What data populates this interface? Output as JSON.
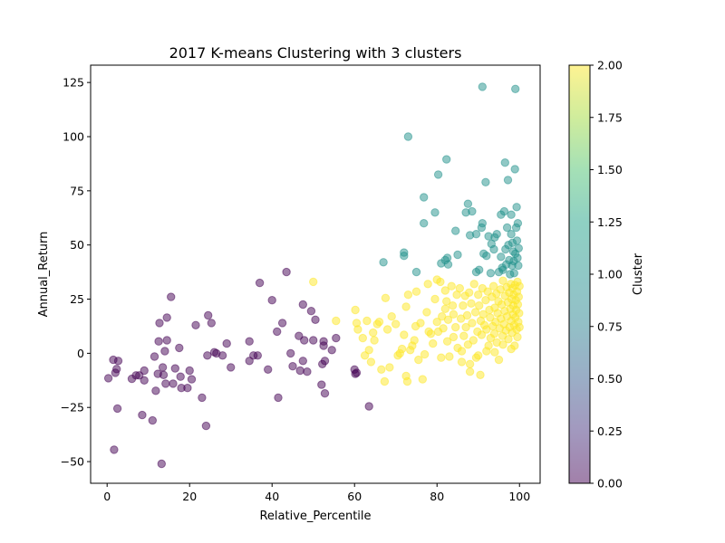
{
  "chart_data": {
    "type": "scatter",
    "title": "2017 K-means Clustering with 3 clusters",
    "xlabel": "Relative_Percentile",
    "ylabel": "Annual_Return",
    "xlim": [
      -4,
      105
    ],
    "ylim": [
      -60,
      133
    ],
    "xticks": [
      0,
      20,
      40,
      60,
      80,
      100
    ],
    "yticks": [
      -50,
      -25,
      0,
      25,
      50,
      75,
      100,
      125
    ],
    "grid": false,
    "colorbar": {
      "label": "Cluster",
      "range": [
        0,
        2
      ],
      "ticks": [
        "0.00",
        "0.25",
        "0.50",
        "0.75",
        "1.00",
        "1.25",
        "1.50",
        "1.75",
        "2.00"
      ],
      "colormap": "viridis"
    },
    "point_alpha": 0.5,
    "series": [
      {
        "cluster": 0,
        "color": "#440154",
        "points": [
          [
            0.3,
            -11.5
          ],
          [
            1.5,
            -3.0
          ],
          [
            1.7,
            -44.5
          ],
          [
            2.0,
            -9.0
          ],
          [
            2.3,
            -7.3
          ],
          [
            2.5,
            -25.5
          ],
          [
            2.7,
            -3.5
          ],
          [
            6.0,
            -11.8
          ],
          [
            7.0,
            -10.2
          ],
          [
            7.8,
            -10.2
          ],
          [
            8.5,
            -28.5
          ],
          [
            9.0,
            -8.0
          ],
          [
            9.0,
            -12.5
          ],
          [
            11.0,
            -31.0
          ],
          [
            11.5,
            -1.5
          ],
          [
            11.8,
            -17.3
          ],
          [
            12.3,
            -9.5
          ],
          [
            12.5,
            5.5
          ],
          [
            12.7,
            14.0
          ],
          [
            13.2,
            -51.0
          ],
          [
            13.5,
            -6.5
          ],
          [
            13.7,
            -10.0
          ],
          [
            14.0,
            1.0
          ],
          [
            14.2,
            -14.0
          ],
          [
            14.5,
            16.5
          ],
          [
            14.5,
            6.0
          ],
          [
            15.5,
            26.0
          ],
          [
            16.0,
            -14.0
          ],
          [
            16.5,
            -7.0
          ],
          [
            17.5,
            2.5
          ],
          [
            17.8,
            -10.8
          ],
          [
            18.0,
            -16.0
          ],
          [
            19.5,
            -16.0
          ],
          [
            20.0,
            -8.0
          ],
          [
            20.5,
            -12.0
          ],
          [
            21.5,
            13.0
          ],
          [
            23.0,
            -20.5
          ],
          [
            24.0,
            -33.5
          ],
          [
            24.3,
            -1.0
          ],
          [
            24.5,
            17.5
          ],
          [
            25.3,
            14.0
          ],
          [
            26.0,
            0.5
          ],
          [
            26.5,
            0.0
          ],
          [
            28.0,
            -1.0
          ],
          [
            29.0,
            4.5
          ],
          [
            30.0,
            -6.5
          ],
          [
            34.5,
            5.5
          ],
          [
            34.5,
            -3.5
          ],
          [
            35.5,
            -1.0
          ],
          [
            36.5,
            -1.0
          ],
          [
            37.0,
            32.5
          ],
          [
            39.0,
            -7.5
          ],
          [
            40.0,
            24.5
          ],
          [
            41.2,
            10.0
          ],
          [
            41.5,
            -20.5
          ],
          [
            42.5,
            14.0
          ],
          [
            43.5,
            37.5
          ],
          [
            44.5,
            0.0
          ],
          [
            45.0,
            -6.0
          ],
          [
            46.5,
            8.0
          ],
          [
            46.8,
            -8.0
          ],
          [
            47.5,
            -3.5
          ],
          [
            47.5,
            22.5
          ],
          [
            47.8,
            6.0
          ],
          [
            48.5,
            -8.5
          ],
          [
            49.5,
            19.5
          ],
          [
            50.0,
            6.0
          ],
          [
            50.5,
            15.5
          ],
          [
            52.0,
            -14.5
          ],
          [
            52.2,
            -5.0
          ],
          [
            52.5,
            5.5
          ],
          [
            52.5,
            3.5
          ],
          [
            52.8,
            -18.5
          ],
          [
            52.8,
            -3.5
          ],
          [
            54.5,
            1.5
          ],
          [
            55.5,
            7.0
          ],
          [
            60.0,
            -7.5
          ],
          [
            60.2,
            -9.5
          ],
          [
            60.5,
            -9.0
          ],
          [
            63.5,
            -24.5
          ]
        ]
      },
      {
        "cluster": 1,
        "color": "#21918c",
        "points": [
          [
            67.0,
            42.0
          ],
          [
            72.0,
            46.5
          ],
          [
            72.0,
            45.0
          ],
          [
            73.0,
            100.0
          ],
          [
            75.0,
            37.5
          ],
          [
            76.8,
            72.0
          ],
          [
            76.8,
            60.0
          ],
          [
            79.5,
            65.0
          ],
          [
            80.3,
            82.5
          ],
          [
            81.0,
            41.5
          ],
          [
            82.0,
            43.0
          ],
          [
            82.3,
            89.5
          ],
          [
            82.5,
            44.0
          ],
          [
            82.7,
            41.0
          ],
          [
            84.5,
            56.5
          ],
          [
            85.0,
            45.5
          ],
          [
            87.0,
            65.0
          ],
          [
            87.5,
            69.0
          ],
          [
            88.0,
            54.5
          ],
          [
            88.5,
            65.5
          ],
          [
            89.5,
            55.0
          ],
          [
            89.5,
            37.5
          ],
          [
            90.2,
            38.5
          ],
          [
            90.8,
            58.0
          ],
          [
            91.0,
            60.0
          ],
          [
            91.3,
            46.0
          ],
          [
            91.8,
            79.0
          ],
          [
            91.0,
            123.0
          ],
          [
            92.0,
            45.0
          ],
          [
            92.5,
            54.0
          ],
          [
            93.0,
            37.0
          ],
          [
            93.2,
            50.5
          ],
          [
            93.8,
            48.0
          ],
          [
            94.0,
            53.5
          ],
          [
            94.5,
            55.0
          ],
          [
            95.0,
            37.5
          ],
          [
            95.5,
            64.0
          ],
          [
            95.5,
            44.5
          ],
          [
            95.8,
            39.5
          ],
          [
            96.0,
            38.5
          ],
          [
            96.3,
            65.5
          ],
          [
            96.5,
            88.0
          ],
          [
            96.6,
            48.0
          ],
          [
            96.8,
            41.0
          ],
          [
            97.0,
            58.0
          ],
          [
            97.2,
            80.0
          ],
          [
            97.3,
            50.0
          ],
          [
            97.5,
            43.0
          ],
          [
            97.7,
            36.5
          ],
          [
            98.0,
            55.0
          ],
          [
            98.0,
            64.0
          ],
          [
            98.2,
            40.5
          ],
          [
            98.3,
            51.0
          ],
          [
            98.5,
            47.0
          ],
          [
            98.6,
            42.5
          ],
          [
            98.7,
            37.0
          ],
          [
            98.9,
            85.0
          ],
          [
            99.0,
            122.0
          ],
          [
            99.0,
            46.0
          ],
          [
            99.2,
            58.0
          ],
          [
            99.3,
            67.5
          ],
          [
            99.4,
            52.0
          ],
          [
            99.5,
            44.0
          ],
          [
            99.6,
            60.0
          ],
          [
            99.7,
            40.5
          ],
          [
            99.8,
            48.5
          ]
        ]
      },
      {
        "cluster": 2,
        "color": "#fde725",
        "points": [
          [
            50.0,
            33.0
          ],
          [
            55.5,
            15.0
          ],
          [
            60.2,
            20.0
          ],
          [
            60.5,
            14.0
          ],
          [
            60.8,
            11.0
          ],
          [
            62.0,
            7.0
          ],
          [
            62.5,
            -1.0
          ],
          [
            63.0,
            15.0
          ],
          [
            63.5,
            1.5
          ],
          [
            64.0,
            -4.0
          ],
          [
            64.5,
            9.5
          ],
          [
            64.8,
            6.0
          ],
          [
            65.5,
            13.5
          ],
          [
            66.0,
            14.5
          ],
          [
            66.5,
            -7.5
          ],
          [
            67.3,
            -13.0
          ],
          [
            67.5,
            25.5
          ],
          [
            68.0,
            11.0
          ],
          [
            68.5,
            -6.5
          ],
          [
            69.0,
            17.0
          ],
          [
            70.0,
            13.5
          ],
          [
            70.5,
            -1.0
          ],
          [
            71.0,
            0.0
          ],
          [
            71.5,
            2.0
          ],
          [
            72.0,
            8.5
          ],
          [
            72.5,
            21.5
          ],
          [
            72.5,
            -10.5
          ],
          [
            72.8,
            -13.0
          ],
          [
            73.0,
            27.0
          ],
          [
            73.5,
            1.5
          ],
          [
            74.0,
            3.5
          ],
          [
            74.5,
            6.0
          ],
          [
            74.8,
            12.5
          ],
          [
            75.0,
            28.5
          ],
          [
            75.5,
            -3.0
          ],
          [
            76.0,
            14.0
          ],
          [
            76.5,
            -12.0
          ],
          [
            77.0,
            -0.5
          ],
          [
            77.5,
            19.0
          ],
          [
            77.8,
            32.0
          ],
          [
            78.0,
            10.0
          ],
          [
            78.5,
            9.0
          ],
          [
            79.0,
            4.5
          ],
          [
            79.5,
            25.0
          ],
          [
            80.0,
            14.5
          ],
          [
            80.3,
            10.0
          ],
          [
            80.8,
            33.0
          ],
          [
            81.0,
            -2.0
          ],
          [
            81.2,
            17.0
          ],
          [
            81.5,
            11.5
          ],
          [
            82.0,
            29.0
          ],
          [
            82.3,
            24.0
          ],
          [
            82.5,
            5.5
          ],
          [
            82.7,
            15.5
          ],
          [
            83.0,
            -1.5
          ],
          [
            83.5,
            31.0
          ],
          [
            83.8,
            22.0
          ],
          [
            84.0,
            18.0
          ],
          [
            84.5,
            12.0
          ],
          [
            84.8,
            27.0
          ],
          [
            85.0,
            2.5
          ],
          [
            85.5,
            30.0
          ],
          [
            85.8,
            16.0
          ],
          [
            86.0,
            -4.0
          ],
          [
            86.3,
            22.0
          ],
          [
            86.5,
            8.0
          ],
          [
            86.8,
            26.5
          ],
          [
            87.0,
            12.0
          ],
          [
            87.3,
            17.5
          ],
          [
            87.5,
            4.0
          ],
          [
            87.8,
            28.0
          ],
          [
            88.0,
            -8.5
          ],
          [
            88.3,
            23.0
          ],
          [
            88.5,
            14.0
          ],
          [
            88.8,
            6.0
          ],
          [
            89.0,
            32.0
          ],
          [
            89.3,
            19.0
          ],
          [
            89.5,
            -2.0
          ],
          [
            89.8,
            10.0
          ],
          [
            90.0,
            27.0
          ],
          [
            90.2,
            22.0
          ],
          [
            90.5,
            -10.0
          ],
          [
            90.6,
            15.0
          ],
          [
            90.8,
            8.5
          ],
          [
            91.0,
            30.0
          ],
          [
            91.2,
            18.0
          ],
          [
            91.5,
            13.0
          ],
          [
            91.8,
            24.5
          ],
          [
            92.0,
            11.0
          ],
          [
            92.3,
            28.5
          ],
          [
            92.5,
            3.5
          ],
          [
            92.7,
            20.0
          ],
          [
            92.9,
            16.5
          ],
          [
            93.0,
            7.0
          ],
          [
            93.3,
            26.0
          ],
          [
            93.5,
            12.5
          ],
          [
            93.7,
            31.0
          ],
          [
            93.9,
            9.0
          ],
          [
            94.0,
            21.0
          ],
          [
            94.2,
            14.5
          ],
          [
            94.4,
            27.5
          ],
          [
            94.5,
            5.0
          ],
          [
            94.7,
            18.5
          ],
          [
            94.9,
            24.0
          ],
          [
            95.0,
            -3.0
          ],
          [
            95.2,
            11.5
          ],
          [
            95.4,
            29.5
          ],
          [
            95.5,
            16.0
          ],
          [
            95.7,
            22.5
          ],
          [
            95.9,
            8.0
          ],
          [
            96.0,
            33.5
          ],
          [
            96.2,
            13.5
          ],
          [
            96.4,
            19.5
          ],
          [
            96.5,
            26.5
          ],
          [
            96.7,
            10.5
          ],
          [
            96.9,
            30.5
          ],
          [
            97.0,
            17.0
          ],
          [
            97.2,
            23.5
          ],
          [
            97.3,
            6.5
          ],
          [
            97.5,
            28.0
          ],
          [
            97.6,
            12.0
          ],
          [
            97.8,
            20.5
          ],
          [
            97.9,
            32.0
          ],
          [
            98.0,
            15.0
          ],
          [
            98.1,
            25.0
          ],
          [
            98.2,
            9.5
          ],
          [
            98.3,
            30.0
          ],
          [
            98.4,
            18.0
          ],
          [
            98.5,
            22.0
          ],
          [
            98.6,
            27.0
          ],
          [
            98.7,
            13.0
          ],
          [
            98.8,
            3.5
          ],
          [
            98.9,
            31.5
          ],
          [
            99.0,
            16.5
          ],
          [
            99.1,
            24.5
          ],
          [
            99.2,
            20.0
          ],
          [
            99.3,
            11.0
          ],
          [
            99.4,
            28.5
          ],
          [
            99.5,
            7.5
          ],
          [
            99.6,
            22.5
          ],
          [
            99.7,
            14.5
          ],
          [
            99.8,
            26.0
          ],
          [
            99.9,
            18.5
          ],
          [
            100.0,
            31.0
          ],
          [
            100.0,
            12.0
          ],
          [
            99.5,
            33.0
          ],
          [
            98.0,
            2.0
          ],
          [
            96.0,
            4.0
          ],
          [
            94.0,
            0.5
          ],
          [
            92.0,
            1.0
          ],
          [
            90.0,
            -1.0
          ],
          [
            88.0,
            -5.0
          ],
          [
            86.0,
            1.0
          ],
          [
            84.0,
            7.5
          ],
          [
            82.0,
            20.5
          ],
          [
            80.0,
            34.0
          ]
        ]
      }
    ]
  }
}
